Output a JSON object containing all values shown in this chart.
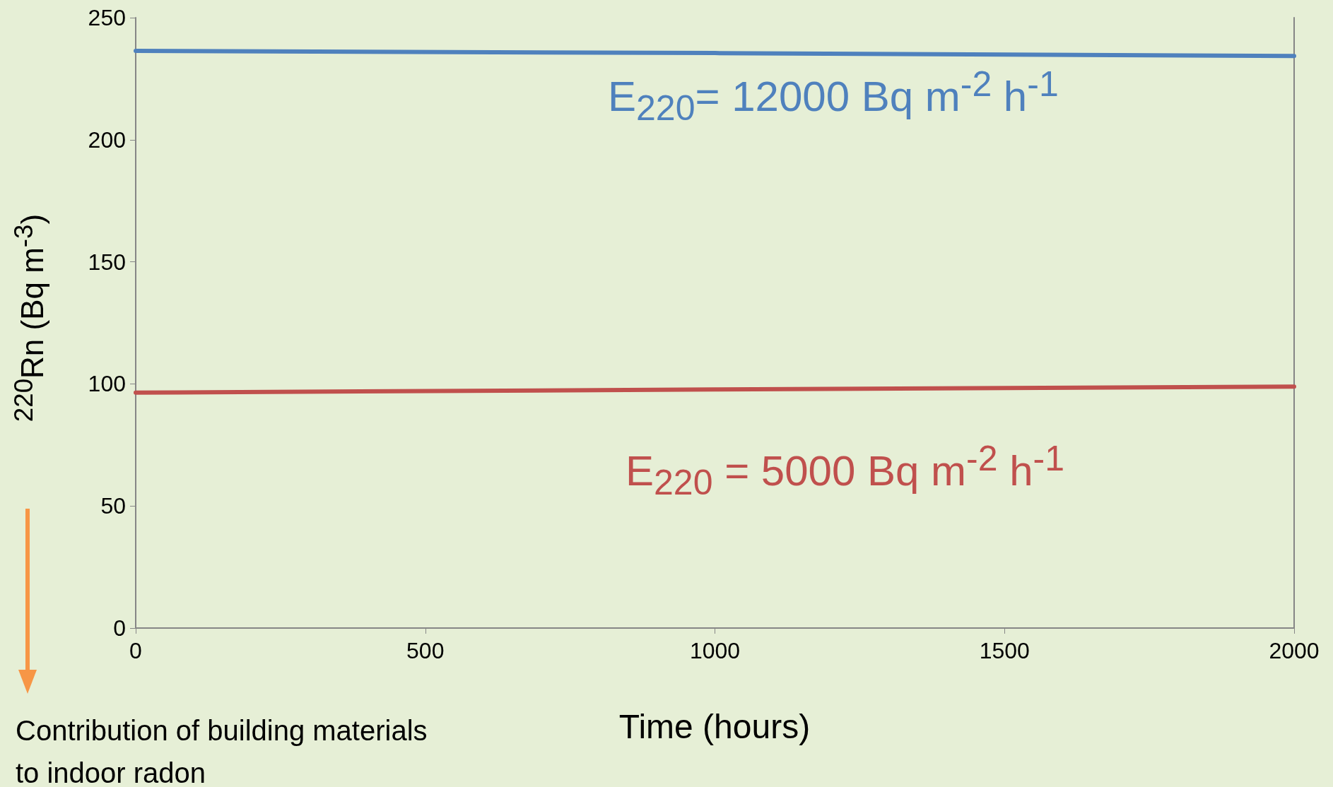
{
  "chart_data": {
    "type": "line",
    "xlabel": "Time (hours)",
    "ylabel": "$^{220}$Rn (Bq m$^{-3}$)",
    "x": [
      0,
      1000,
      2000
    ],
    "series": [
      {
        "color": "#4f81bd",
        "values": [
          236.4,
          235.5,
          234.3
        ]
      },
      {
        "color": "#c0504d",
        "values": [
          96.4,
          97.7,
          98.9
        ]
      }
    ],
    "xlim": [
      0,
      2000
    ],
    "xticks": [
      0,
      500,
      1000,
      1500,
      2000
    ],
    "ylim": [
      0,
      250
    ],
    "yticks": [
      0,
      50,
      100,
      150,
      200,
      250
    ],
    "grid": false,
    "marker": "none",
    "line_style": "solid",
    "annotations": [
      "E$_{220}$= 12000 Bq m$^{-2}$ h$^{-1}$",
      "E$_{220}$ = 5000 Bq m$^{-2}$ h$^{-1}$",
      "Contribution of building materials to indoor radon"
    ]
  }
}
